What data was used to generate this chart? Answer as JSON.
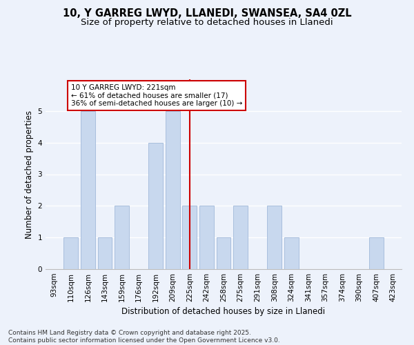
{
  "title_line1": "10, Y GARREG LWYD, LLANEDI, SWANSEA, SA4 0ZL",
  "title_line2": "Size of property relative to detached houses in Llanedi",
  "xlabel": "Distribution of detached houses by size in Llanedi",
  "ylabel": "Number of detached properties",
  "categories": [
    "93sqm",
    "110sqm",
    "126sqm",
    "143sqm",
    "159sqm",
    "176sqm",
    "192sqm",
    "209sqm",
    "225sqm",
    "242sqm",
    "258sqm",
    "275sqm",
    "291sqm",
    "308sqm",
    "324sqm",
    "341sqm",
    "357sqm",
    "374sqm",
    "390sqm",
    "407sqm",
    "423sqm"
  ],
  "values": [
    0,
    1,
    5,
    1,
    2,
    0,
    4,
    5,
    2,
    2,
    1,
    2,
    0,
    2,
    1,
    0,
    0,
    0,
    0,
    1,
    0
  ],
  "bar_color": "#c8d8ee",
  "bar_edge_color": "#a8bedd",
  "highlight_index": 8,
  "vline_color": "#cc0000",
  "annotation_text": "10 Y GARREG LWYD: 221sqm\n← 61% of detached houses are smaller (17)\n36% of semi-detached houses are larger (10) →",
  "annotation_box_color": "#ffffff",
  "annotation_box_edge": "#cc0000",
  "ylim": [
    0,
    6
  ],
  "yticks": [
    0,
    1,
    2,
    3,
    4,
    5
  ],
  "background_color": "#edf2fb",
  "grid_color": "#ffffff",
  "footer_text": "Contains HM Land Registry data © Crown copyright and database right 2025.\nContains public sector information licensed under the Open Government Licence v3.0.",
  "title_fontsize": 10.5,
  "subtitle_fontsize": 9.5,
  "axis_label_fontsize": 8.5,
  "tick_fontsize": 7.5,
  "annotation_fontsize": 7.5,
  "footer_fontsize": 6.5
}
